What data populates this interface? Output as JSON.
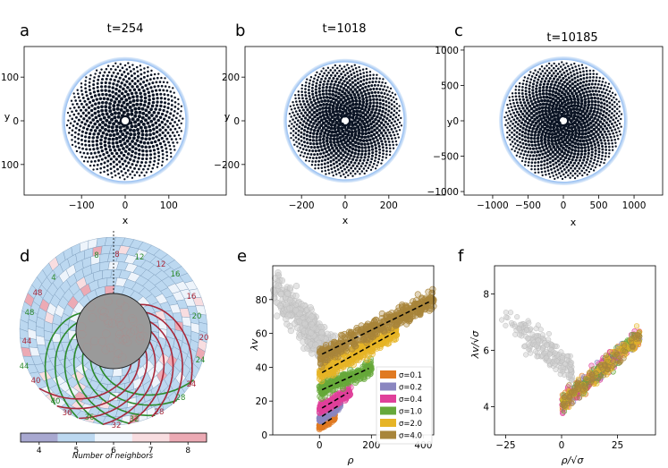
{
  "figure": {
    "panels_top": [
      {
        "letter": "a",
        "title": "t=254",
        "xlabel": "x",
        "ylabel": "y",
        "xticks": [
          -100,
          0,
          100
        ],
        "yticks": [
          -100,
          0,
          100
        ],
        "range": 170
      },
      {
        "letter": "b",
        "title": "t=1018",
        "xlabel": "x",
        "ylabel": "y",
        "xticks": [
          -200,
          0,
          200
        ],
        "yticks": [
          -200,
          0,
          200
        ],
        "range": 340
      },
      {
        "letter": "c",
        "title": "t=10185",
        "xlabel": "x",
        "ylabel": "y",
        "xticks": [
          -1000,
          -500,
          0,
          500,
          1000
        ],
        "yticks": [
          -1000,
          -500,
          0,
          500,
          1000
        ],
        "range": 1050
      }
    ],
    "panel_d": {
      "letter": "d",
      "green_numbers": [
        "4",
        "8",
        "12",
        "16",
        "20",
        "24",
        "28",
        "32",
        "36",
        "40",
        "44",
        "48"
      ],
      "red_numbers": [
        "8",
        "12",
        "16",
        "20",
        "24",
        "28",
        "32",
        "36",
        "40",
        "44",
        "48"
      ],
      "colorbar_label": "Number of neighbors",
      "colorbar_ticks": [
        "4",
        "5",
        "6",
        "7",
        "8"
      ],
      "colorbar_colors": [
        "#a8a8d0",
        "#bcd8f0",
        "#eef4fb",
        "#f8dde0",
        "#ecaab4"
      ],
      "spiral_green": "#2b8a2b",
      "spiral_red": "#a8283a"
    },
    "panel_e": {
      "letter": "e",
      "xlabel": "ρ",
      "ylabel": "λv"
    },
    "panel_f": {
      "letter": "f",
      "xlabel": "ρ/√σ",
      "ylabel": "λv/√σ"
    }
  },
  "chart_data": [
    {
      "type": "scatter",
      "panel": "e",
      "xlabel": "ρ",
      "ylabel": "λv",
      "xlim": [
        -180,
        440
      ],
      "ylim": [
        0,
        100
      ],
      "xticks": [
        0,
        200,
        400
      ],
      "yticks": [
        0,
        20,
        40,
        60,
        80
      ],
      "legend_position": "center-right",
      "series": [
        {
          "name": "σ=0.1",
          "color": "#e07a22",
          "x_range": [
            0,
            60
          ],
          "fit": {
            "slope": 0.1,
            "intercept": 5
          }
        },
        {
          "name": "σ=0.2",
          "color": "#8a86c0",
          "x_range": [
            0,
            80
          ],
          "fit": {
            "slope": 0.1,
            "intercept": 10
          }
        },
        {
          "name": "σ=0.4",
          "color": "#e0409a",
          "x_range": [
            0,
            120
          ],
          "fit": {
            "slope": 0.09,
            "intercept": 15
          }
        },
        {
          "name": "σ=1.0",
          "color": "#66a83a",
          "x_range": [
            0,
            200
          ],
          "fit": {
            "slope": 0.07,
            "intercept": 26
          }
        },
        {
          "name": "σ=2.0",
          "color": "#e6b426",
          "x_range": [
            0,
            300
          ],
          "fit": {
            "slope": 0.085,
            "intercept": 36
          }
        },
        {
          "name": "σ=4.0",
          "color": "#a8853a",
          "x_range": [
            0,
            440
          ],
          "fit": {
            "slope": 0.075,
            "intercept": 47
          }
        }
      ],
      "gray_cloud": {
        "x_range": [
          -180,
          60
        ],
        "y_range": [
          15,
          95
        ],
        "color": "#c8c8c8"
      }
    },
    {
      "type": "scatter",
      "panel": "f",
      "xlabel": "ρ/√σ",
      "ylabel": "λv/√σ",
      "xlim": [
        -30,
        42
      ],
      "ylim": [
        3.0,
        9.0
      ],
      "xticks": [
        -25,
        0,
        25
      ],
      "yticks": [
        4,
        6,
        8
      ],
      "trend": {
        "x_range": [
          0,
          35
        ],
        "y_start": 4.1,
        "y_end": 6.5
      },
      "gray_cloud": {
        "x_range": [
          -28,
          5
        ],
        "y_range": [
          4.6,
          8.6
        ],
        "color": "#c8c8c8"
      }
    }
  ]
}
